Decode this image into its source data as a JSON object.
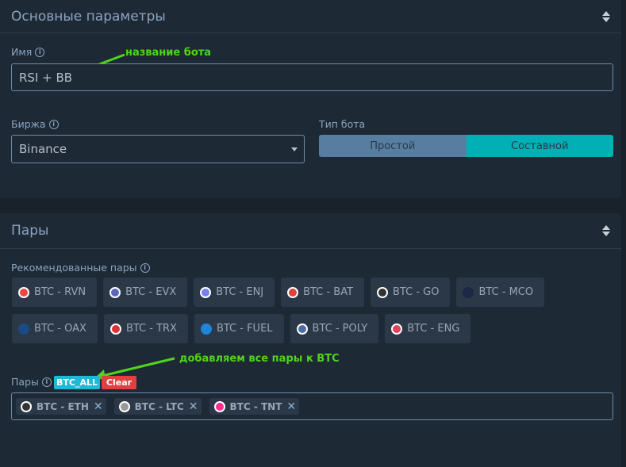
{
  "section_main": {
    "title": "Основные параметры"
  },
  "name": {
    "label": "Имя",
    "value": "RSI + BB",
    "annotation": "название бота"
  },
  "exchange": {
    "label": "Биржа",
    "value": "Binance"
  },
  "bot_type": {
    "label": "Тип бота",
    "options": [
      "Простой",
      "Составной"
    ],
    "selected": "Составной",
    "colors": {
      "inactive": "#577ea0",
      "active": "#00b0b5"
    }
  },
  "section_pairs": {
    "title": "Пары"
  },
  "recommended": {
    "label": "Рекомендованные пары",
    "rows": [
      [
        "BTC - RVN",
        "BTC - EVX",
        "BTC - ENJ",
        "BTC - BAT",
        "BTC - GO",
        "BTC - MCO"
      ],
      [
        "BTC - OAX",
        "BTC - TRX",
        "BTC - FUEL",
        "BTC - POLY",
        "BTC - ENG"
      ]
    ]
  },
  "pairs": {
    "label": "Пары",
    "btc_all": "BTC_ALL",
    "clear": "Clear",
    "annotation": "добавляем все пары к BTC",
    "selected": [
      "BTC - ETH",
      "BTC - LTC",
      "BTC - TNT"
    ]
  }
}
